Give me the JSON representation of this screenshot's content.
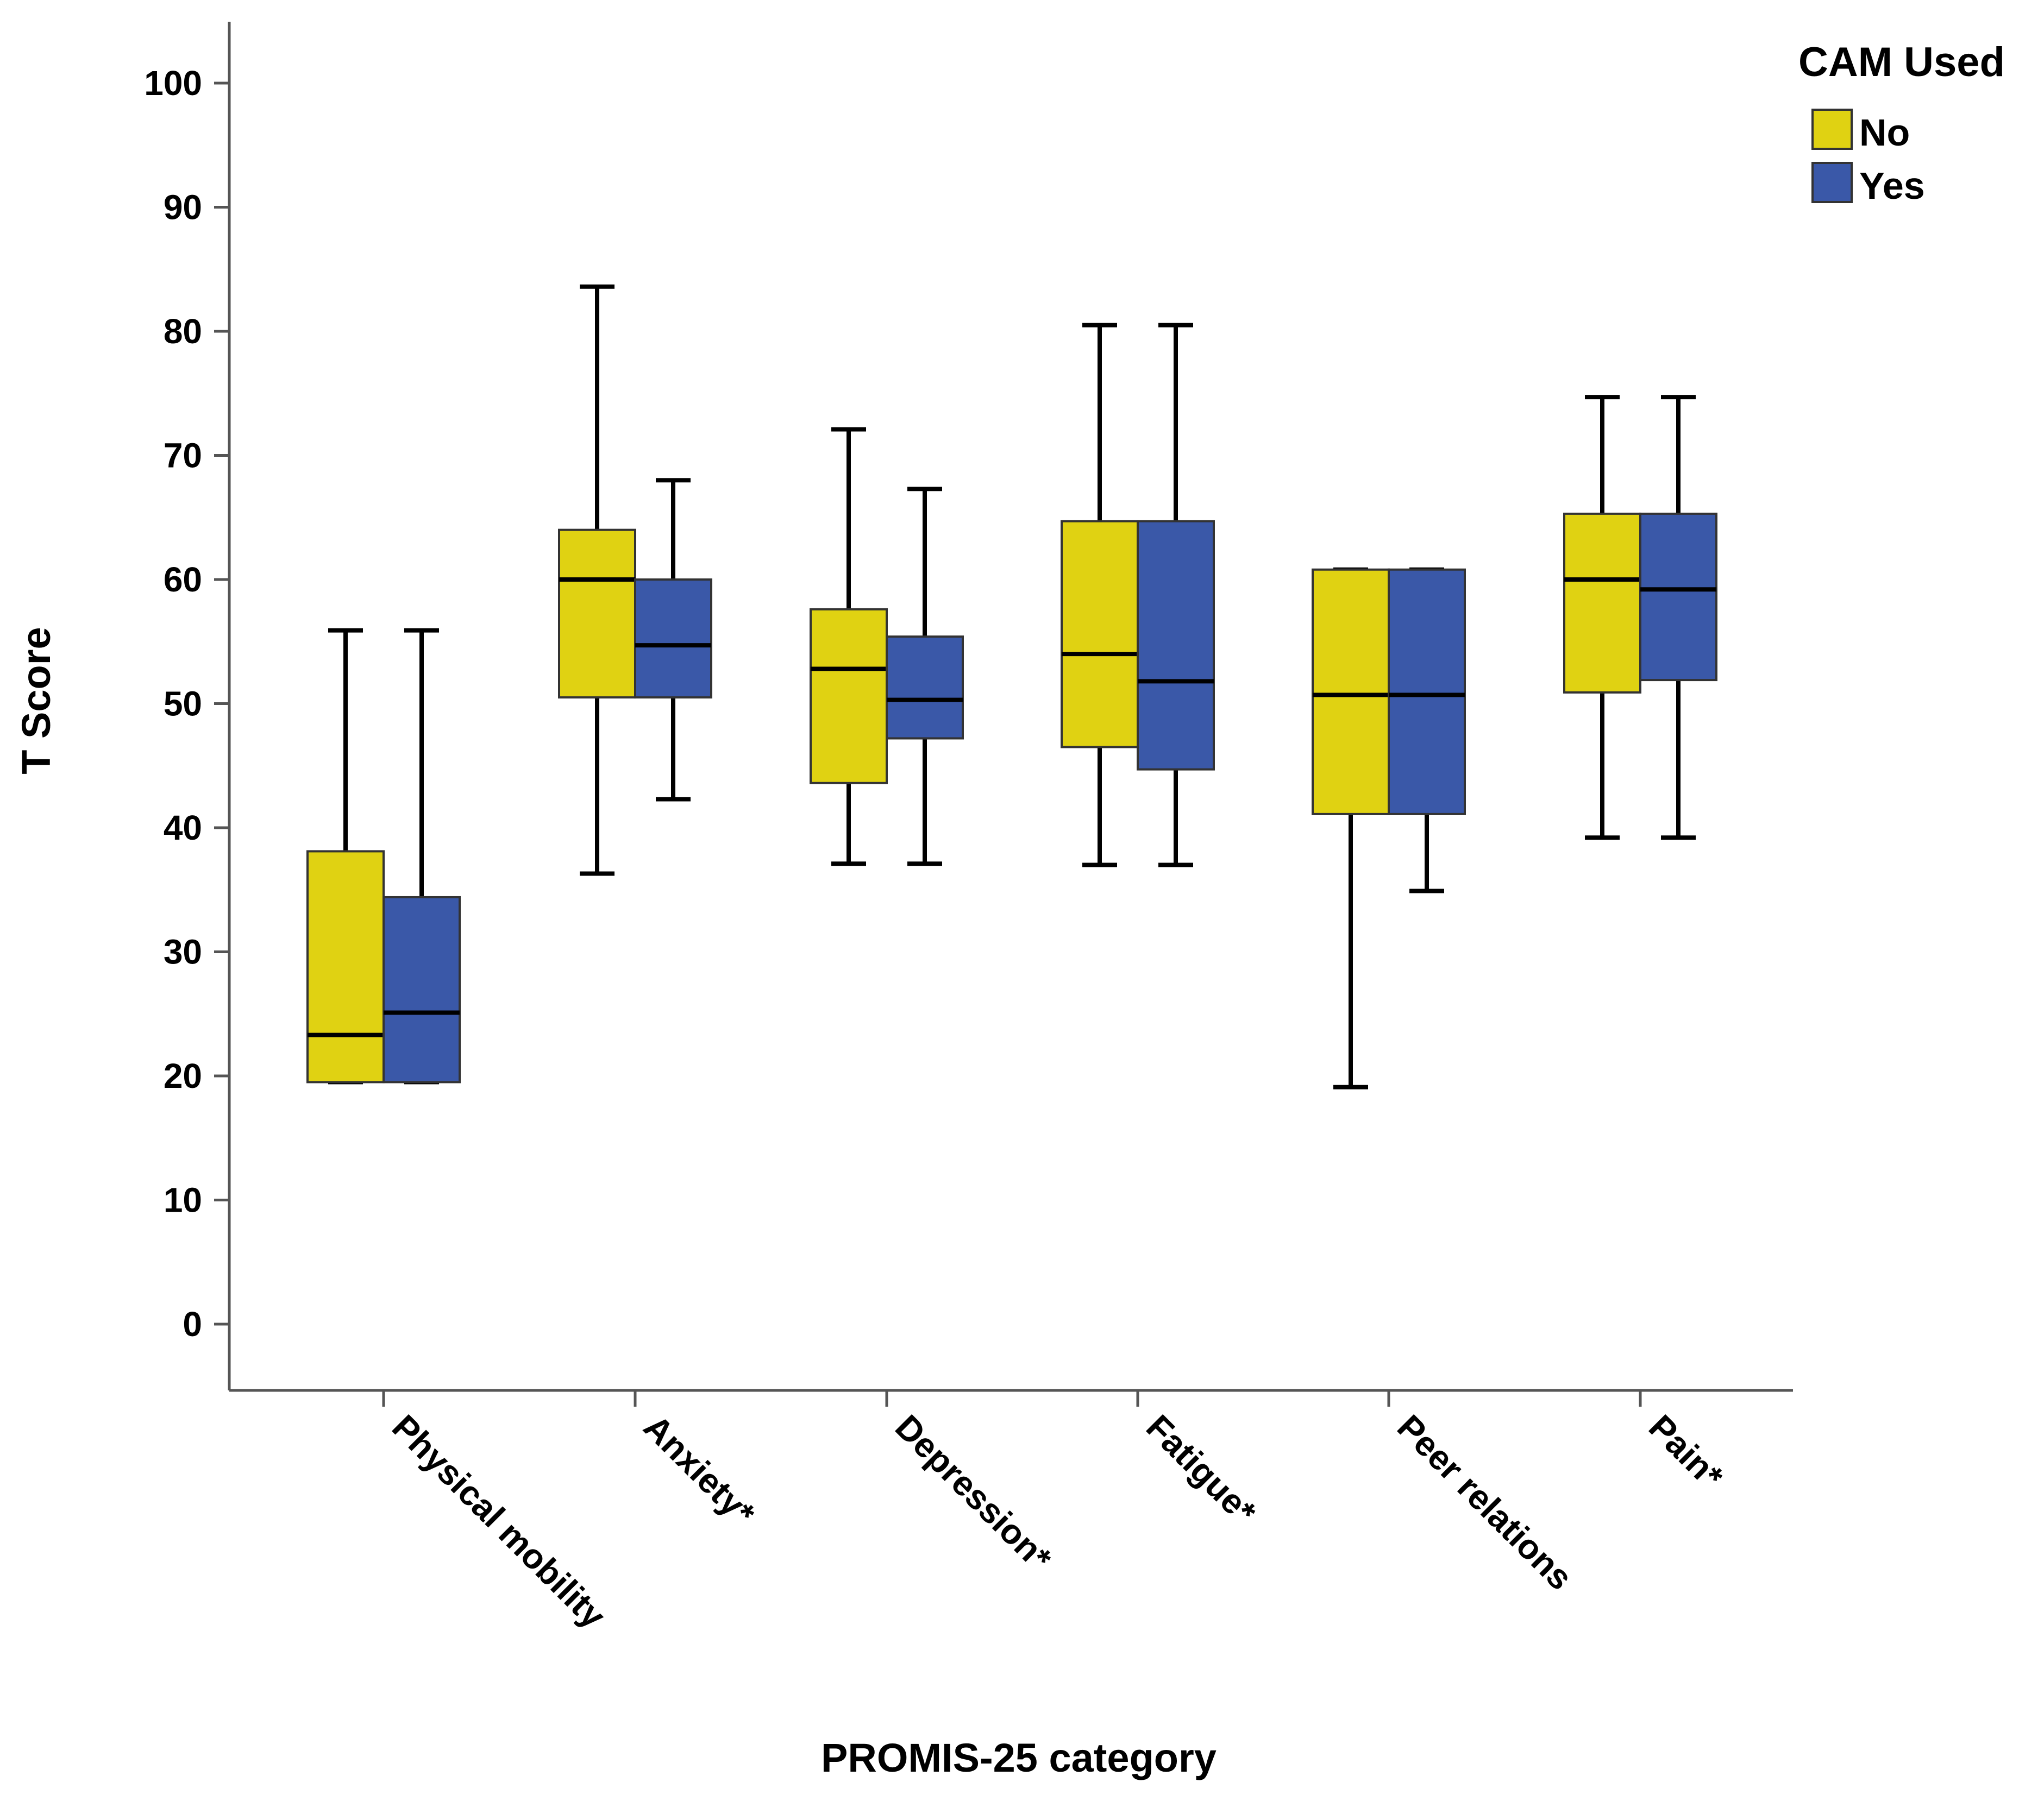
{
  "chart_data": {
    "type": "boxplot",
    "xlabel": "PROMIS-25 category",
    "ylabel": "T Score",
    "ylim": [
      -5,
      105
    ],
    "yticks": [
      0,
      10,
      20,
      30,
      40,
      50,
      60,
      70,
      80,
      90,
      100
    ],
    "grid": false,
    "categories": [
      "Physical mobility",
      "Anxiety*",
      "Depression*",
      "Fatigue*",
      "Peer relations",
      "Pain*"
    ],
    "legend": {
      "title": "CAM Used",
      "position": "top-right"
    },
    "series": [
      {
        "name": "No",
        "color": "#e0d212",
        "boxes": [
          {
            "min": 19.5,
            "q1": 19.5,
            "median": 23.3,
            "q3": 38.1,
            "max": 55.9
          },
          {
            "min": 36.3,
            "q1": 50.5,
            "median": 60.0,
            "q3": 64.0,
            "max": 83.6
          },
          {
            "min": 37.1,
            "q1": 43.6,
            "median": 52.8,
            "q3": 57.6,
            "max": 72.1
          },
          {
            "min": 37.0,
            "q1": 46.5,
            "median": 54.0,
            "q3": 64.7,
            "max": 80.5
          },
          {
            "min": 19.1,
            "q1": 41.1,
            "median": 50.7,
            "q3": 60.8,
            "max": 60.8
          },
          {
            "min": 39.2,
            "q1": 50.9,
            "median": 60.0,
            "q3": 65.3,
            "max": 74.7
          }
        ]
      },
      {
        "name": "Yes",
        "color": "#3a58a8",
        "boxes": [
          {
            "min": 19.5,
            "q1": 19.5,
            "median": 25.1,
            "q3": 34.4,
            "max": 55.9
          },
          {
            "min": 42.3,
            "q1": 50.5,
            "median": 54.7,
            "q3": 60.0,
            "max": 68.0
          },
          {
            "min": 37.1,
            "q1": 47.2,
            "median": 50.3,
            "q3": 55.4,
            "max": 67.3
          },
          {
            "min": 37.0,
            "q1": 44.7,
            "median": 51.8,
            "q3": 64.7,
            "max": 80.5
          },
          {
            "min": 34.9,
            "q1": 41.1,
            "median": 50.7,
            "q3": 60.8,
            "max": 60.8
          },
          {
            "min": 39.2,
            "q1": 51.9,
            "median": 59.2,
            "q3": 65.3,
            "max": 74.7
          }
        ]
      }
    ]
  }
}
